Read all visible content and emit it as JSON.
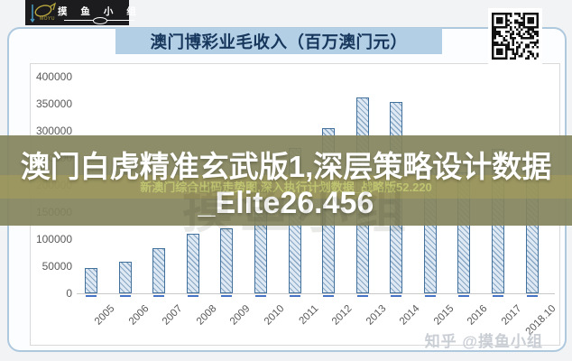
{
  "logo": {
    "brand": "摸 鱼 小 组",
    "sub": "MOYU"
  },
  "banner": {
    "title": "澳门博彩业毛收入（百万澳门元）"
  },
  "overlay": {
    "line1": "澳门白虎精准玄武版1,深层策略设计数据",
    "line2": "_Elite26.456",
    "faint": "新澳门综合出码走势图,深入执行计划数据_战略版52.220"
  },
  "watermarks": {
    "zhihu": "知乎 @摸鱼小组",
    "chart_bg": "摸鱼小组"
  },
  "colors": {
    "banner_bg": "#b3cfe6",
    "banner_text": "#16365c",
    "bar_fill": "#dee9f4",
    "bar_border": "#41719c",
    "overlay_olive": "#84845e",
    "tick_blue": "#4472c4",
    "card_border": "#aec8de"
  },
  "chart_data": {
    "type": "bar",
    "title": "澳门博彩业毛收入（百万澳门元）",
    "categories": [
      "2005",
      "2006",
      "2007",
      "2008",
      "2009",
      "2010",
      "2011",
      "2012",
      "2013",
      "2014",
      "2015",
      "2016",
      "2017",
      "2018.10"
    ],
    "values": [
      47134,
      57521,
      83847,
      109826,
      120383,
      189588,
      269058,
      305235,
      361866,
      352714,
      231811,
      223210,
      266455,
      250339
    ],
    "xlabel": "",
    "ylabel": "",
    "ylim": [
      0,
      400000
    ],
    "ytick_step": 50000,
    "yticks": [
      "400000",
      "350000",
      "300000",
      "250000",
      "200000",
      "150000",
      "100000",
      "50000",
      "0"
    ],
    "grid": false,
    "legend": "none",
    "bar_hatch": "diagonal"
  }
}
